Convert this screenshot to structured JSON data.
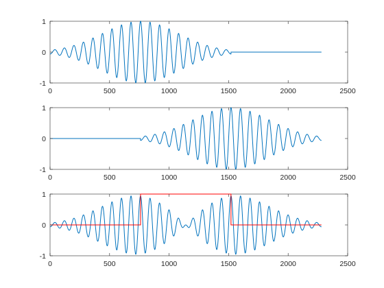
{
  "chart_data": [
    {
      "type": "line",
      "xlim": [
        0,
        2500
      ],
      "ylim": [
        -1,
        1
      ],
      "xticks": [
        "0",
        "500",
        "1000",
        "1500",
        "2000",
        "2500"
      ],
      "yticks": [
        "-1",
        "0",
        "1"
      ],
      "grid": false,
      "series": [
        {
          "color": "#0072BD",
          "waveform": {
            "kind": "gaussian-windowed-cosine",
            "x_start": 0,
            "x_end": 1520,
            "center": 760,
            "sigma": 320,
            "period": 80,
            "phase_x": 760,
            "x_last": 2280
          }
        }
      ]
    },
    {
      "type": "line",
      "xlim": [
        0,
        2500
      ],
      "ylim": [
        -1,
        1
      ],
      "xticks": [
        "0",
        "500",
        "1000",
        "1500",
        "2000",
        "2500"
      ],
      "yticks": [
        "-1",
        "0",
        "1"
      ],
      "grid": false,
      "series": [
        {
          "color": "#0072BD",
          "waveform": {
            "kind": "gaussian-windowed-cosine",
            "x_start": 760,
            "x_end": 2280,
            "center": 1520,
            "sigma": 320,
            "period": 80,
            "phase_x": 1520,
            "x_first": 0
          }
        }
      ]
    },
    {
      "type": "line",
      "xlim": [
        0,
        2500
      ],
      "ylim": [
        -1,
        1
      ],
      "xticks": [
        "0",
        "500",
        "1000",
        "1500",
        "2000",
        "2500"
      ],
      "yticks": [
        "-1",
        "0",
        "1"
      ],
      "grid": false,
      "series": [
        {
          "color": "#0072BD",
          "waveform": {
            "kind": "sum-of-two-gaussian-windowed-cosines",
            "x_start": 0,
            "x_end": 2280,
            "centers": [
              760,
              1520
            ],
            "sigma": 320,
            "period": 80
          }
        },
        {
          "color": "#FF0000",
          "x": [
            0,
            760,
            760,
            1520,
            1520,
            2280
          ],
          "y": [
            0,
            0,
            1,
            1,
            0,
            0
          ]
        }
      ]
    }
  ]
}
